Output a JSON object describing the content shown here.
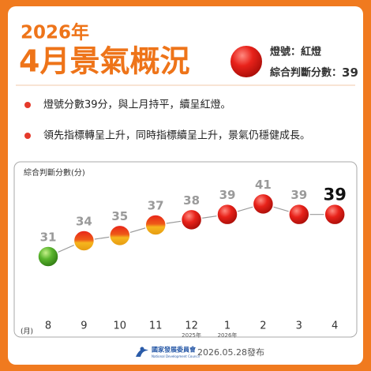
{
  "header": {
    "year": "2026年",
    "title": "4月景氣概況",
    "signal": "燈號：紅燈",
    "score_label": "綜合判斷分數：",
    "score": "39"
  },
  "bullets": [
    "燈號分數39分，與上月持平，續呈紅燈。",
    "領先指標轉呈上升，同時指標續呈上升，景氣仍穩健成長。"
  ],
  "chart_data": {
    "type": "line",
    "y_label": "綜合判斷分數(分)",
    "x_unit": "(月)",
    "categories": [
      "8",
      "9",
      "10",
      "11",
      "12",
      "1",
      "2",
      "3",
      "4"
    ],
    "x_sublabels": [
      null,
      null,
      null,
      null,
      "2025年",
      "2026年",
      null,
      null,
      null
    ],
    "values": [
      31,
      34,
      35,
      37,
      38,
      39,
      41,
      39,
      39
    ],
    "point_colors": [
      "green",
      "yellow-red",
      "yellow-red",
      "yellow-red",
      "red",
      "red",
      "red",
      "red",
      "red"
    ],
    "line_color": "#9a9a9a",
    "ylim": [
      28,
      43
    ]
  },
  "footer": {
    "org": "國家發展委員會",
    "org_en": "National Development Council",
    "date": "2026.05.28發布"
  }
}
